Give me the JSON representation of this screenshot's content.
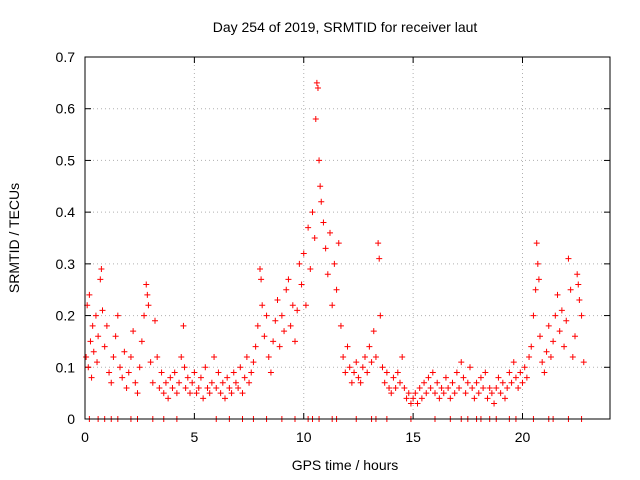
{
  "colors": {
    "series": "#ff0000",
    "axis": "#000000",
    "grid": "#b0b0b0",
    "background": "#ffffff"
  },
  "chart_data": {
    "type": "scatter",
    "title": "Day 254 of 2019, SRMTID for receiver laut",
    "xlabel": "GPS time / hours",
    "ylabel": "SRMTID / TECUs",
    "xlim": [
      0,
      24
    ],
    "ylim": [
      0,
      0.7
    ],
    "xticks": [
      0,
      5,
      10,
      15,
      20
    ],
    "yticks": [
      0,
      0.1,
      0.2,
      0.3,
      0.4,
      0.5,
      0.6,
      0.7
    ],
    "xtick_labels": [
      "0",
      "5",
      "10",
      "15",
      "20"
    ],
    "ytick_labels": [
      "0",
      "0.1",
      "0.2",
      "0.3",
      "0.4",
      "0.5",
      "0.6",
      "0.7"
    ],
    "grid": true,
    "marker": "plus",
    "series": [
      {
        "name": "SRMTID",
        "points": [
          [
            0.05,
            0.12
          ],
          [
            0.1,
            0.22
          ],
          [
            0.15,
            0.1
          ],
          [
            0.2,
            0.24
          ],
          [
            0.25,
            0.15
          ],
          [
            0.3,
            0.08
          ],
          [
            0.35,
            0.18
          ],
          [
            0.4,
            0.13
          ],
          [
            0.5,
            0.2
          ],
          [
            0.55,
            0.11
          ],
          [
            0.6,
            0.16
          ],
          [
            0.7,
            0.27
          ],
          [
            0.75,
            0.29
          ],
          [
            0.8,
            0.21
          ],
          [
            0.9,
            0.14
          ],
          [
            1.0,
            0.18
          ],
          [
            1.1,
            0.09
          ],
          [
            1.2,
            0.07
          ],
          [
            1.3,
            0.12
          ],
          [
            1.4,
            0.16
          ],
          [
            1.5,
            0.2
          ],
          [
            1.6,
            0.1
          ],
          [
            1.7,
            0.08
          ],
          [
            1.8,
            0.13
          ],
          [
            1.9,
            0.06
          ],
          [
            2.0,
            0.09
          ],
          [
            2.1,
            0.12
          ],
          [
            2.2,
            0.17
          ],
          [
            2.3,
            0.07
          ],
          [
            2.4,
            0.05
          ],
          [
            2.5,
            0.1
          ],
          [
            2.6,
            0.15
          ],
          [
            2.7,
            0.2
          ],
          [
            2.8,
            0.26
          ],
          [
            2.85,
            0.24
          ],
          [
            2.9,
            0.22
          ],
          [
            3.0,
            0.11
          ],
          [
            3.1,
            0.07
          ],
          [
            3.2,
            0.19
          ],
          [
            3.3,
            0.12
          ],
          [
            3.4,
            0.06
          ],
          [
            3.5,
            0.09
          ],
          [
            3.6,
            0.05
          ],
          [
            3.7,
            0.07
          ],
          [
            3.8,
            0.04
          ],
          [
            3.9,
            0.08
          ],
          [
            4.0,
            0.06
          ],
          [
            4.1,
            0.09
          ],
          [
            4.2,
            0.05
          ],
          [
            4.3,
            0.07
          ],
          [
            4.4,
            0.12
          ],
          [
            4.5,
            0.18
          ],
          [
            4.55,
            0.1
          ],
          [
            4.6,
            0.06
          ],
          [
            4.7,
            0.08
          ],
          [
            4.8,
            0.05
          ],
          [
            4.9,
            0.07
          ],
          [
            5.0,
            0.09
          ],
          [
            5.1,
            0.05
          ],
          [
            5.2,
            0.06
          ],
          [
            5.3,
            0.08
          ],
          [
            5.4,
            0.04
          ],
          [
            5.5,
            0.1
          ],
          [
            5.6,
            0.06
          ],
          [
            5.7,
            0.05
          ],
          [
            5.8,
            0.07
          ],
          [
            5.9,
            0.12
          ],
          [
            6.0,
            0.06
          ],
          [
            6.1,
            0.09
          ],
          [
            6.2,
            0.05
          ],
          [
            6.3,
            0.07
          ],
          [
            6.4,
            0.04
          ],
          [
            6.5,
            0.08
          ],
          [
            6.6,
            0.06
          ],
          [
            6.7,
            0.05
          ],
          [
            6.8,
            0.09
          ],
          [
            6.9,
            0.07
          ],
          [
            7.0,
            0.06
          ],
          [
            7.1,
            0.1
          ],
          [
            7.2,
            0.05
          ],
          [
            7.3,
            0.08
          ],
          [
            7.4,
            0.12
          ],
          [
            7.5,
            0.07
          ],
          [
            7.6,
            0.09
          ],
          [
            7.7,
            0.11
          ],
          [
            7.8,
            0.14
          ],
          [
            7.9,
            0.18
          ],
          [
            8.0,
            0.29
          ],
          [
            8.05,
            0.27
          ],
          [
            8.1,
            0.22
          ],
          [
            8.2,
            0.16
          ],
          [
            8.3,
            0.2
          ],
          [
            8.4,
            0.12
          ],
          [
            8.5,
            0.09
          ],
          [
            8.6,
            0.15
          ],
          [
            8.7,
            0.19
          ],
          [
            8.8,
            0.23
          ],
          [
            8.9,
            0.14
          ],
          [
            9.0,
            0.2
          ],
          [
            9.1,
            0.17
          ],
          [
            9.2,
            0.25
          ],
          [
            9.3,
            0.27
          ],
          [
            9.4,
            0.18
          ],
          [
            9.5,
            0.22
          ],
          [
            9.6,
            0.15
          ],
          [
            9.7,
            0.21
          ],
          [
            9.8,
            0.3
          ],
          [
            9.9,
            0.26
          ],
          [
            10.0,
            0.32
          ],
          [
            10.1,
            0.22
          ],
          [
            10.2,
            0.37
          ],
          [
            10.3,
            0.29
          ],
          [
            10.4,
            0.4
          ],
          [
            10.5,
            0.35
          ],
          [
            10.55,
            0.58
          ],
          [
            10.6,
            0.65
          ],
          [
            10.65,
            0.64
          ],
          [
            10.7,
            0.5
          ],
          [
            10.75,
            0.45
          ],
          [
            10.8,
            0.42
          ],
          [
            10.9,
            0.38
          ],
          [
            11.0,
            0.33
          ],
          [
            11.1,
            0.28
          ],
          [
            11.2,
            0.36
          ],
          [
            11.3,
            0.22
          ],
          [
            11.4,
            0.3
          ],
          [
            11.5,
            0.25
          ],
          [
            11.6,
            0.34
          ],
          [
            11.7,
            0.18
          ],
          [
            11.8,
            0.12
          ],
          [
            11.9,
            0.09
          ],
          [
            12.0,
            0.14
          ],
          [
            12.1,
            0.1
          ],
          [
            12.2,
            0.07
          ],
          [
            12.3,
            0.09
          ],
          [
            12.4,
            0.11
          ],
          [
            12.5,
            0.08
          ],
          [
            12.6,
            0.07
          ],
          [
            12.7,
            0.1
          ],
          [
            12.8,
            0.12
          ],
          [
            12.9,
            0.09
          ],
          [
            13.0,
            0.14
          ],
          [
            13.1,
            0.11
          ],
          [
            13.2,
            0.17
          ],
          [
            13.3,
            0.12
          ],
          [
            13.4,
            0.34
          ],
          [
            13.45,
            0.31
          ],
          [
            13.5,
            0.2
          ],
          [
            13.6,
            0.1
          ],
          [
            13.7,
            0.07
          ],
          [
            13.8,
            0.09
          ],
          [
            13.9,
            0.06
          ],
          [
            14.0,
            0.05
          ],
          [
            14.1,
            0.08
          ],
          [
            14.2,
            0.06
          ],
          [
            14.3,
            0.09
          ],
          [
            14.4,
            0.07
          ],
          [
            14.5,
            0.12
          ],
          [
            14.6,
            0.06
          ],
          [
            14.7,
            0.04
          ],
          [
            14.8,
            0.05
          ],
          [
            14.9,
            0.03
          ],
          [
            15.0,
            0.04
          ],
          [
            15.1,
            0.05
          ],
          [
            15.2,
            0.03
          ],
          [
            15.3,
            0.06
          ],
          [
            15.4,
            0.04
          ],
          [
            15.5,
            0.07
          ],
          [
            15.6,
            0.05
          ],
          [
            15.7,
            0.08
          ],
          [
            15.8,
            0.06
          ],
          [
            15.9,
            0.09
          ],
          [
            16.0,
            0.05
          ],
          [
            16.1,
            0.07
          ],
          [
            16.2,
            0.04
          ],
          [
            16.3,
            0.06
          ],
          [
            16.4,
            0.05
          ],
          [
            16.5,
            0.08
          ],
          [
            16.6,
            0.06
          ],
          [
            16.7,
            0.04
          ],
          [
            16.8,
            0.07
          ],
          [
            16.9,
            0.05
          ],
          [
            17.0,
            0.09
          ],
          [
            17.1,
            0.06
          ],
          [
            17.2,
            0.11
          ],
          [
            17.3,
            0.08
          ],
          [
            17.4,
            0.05
          ],
          [
            17.5,
            0.07
          ],
          [
            17.6,
            0.1
          ],
          [
            17.7,
            0.06
          ],
          [
            17.8,
            0.04
          ],
          [
            17.9,
            0.07
          ],
          [
            18.0,
            0.05
          ],
          [
            18.1,
            0.08
          ],
          [
            18.2,
            0.06
          ],
          [
            18.3,
            0.09
          ],
          [
            18.4,
            0.04
          ],
          [
            18.5,
            0.06
          ],
          [
            18.6,
            0.05
          ],
          [
            18.7,
            0.03
          ],
          [
            18.8,
            0.06
          ],
          [
            18.9,
            0.08
          ],
          [
            19.0,
            0.05
          ],
          [
            19.1,
            0.07
          ],
          [
            19.2,
            0.04
          ],
          [
            19.3,
            0.06
          ],
          [
            19.4,
            0.09
          ],
          [
            19.5,
            0.07
          ],
          [
            19.6,
            0.11
          ],
          [
            19.7,
            0.08
          ],
          [
            19.8,
            0.06
          ],
          [
            19.9,
            0.09
          ],
          [
            20.0,
            0.07
          ],
          [
            20.1,
            0.1
          ],
          [
            20.2,
            0.08
          ],
          [
            20.3,
            0.12
          ],
          [
            20.4,
            0.14
          ],
          [
            20.5,
            0.2
          ],
          [
            20.6,
            0.25
          ],
          [
            20.65,
            0.34
          ],
          [
            20.7,
            0.3
          ],
          [
            20.75,
            0.27
          ],
          [
            20.8,
            0.16
          ],
          [
            20.9,
            0.11
          ],
          [
            21.0,
            0.09
          ],
          [
            21.1,
            0.13
          ],
          [
            21.2,
            0.18
          ],
          [
            21.3,
            0.12
          ],
          [
            21.4,
            0.15
          ],
          [
            21.5,
            0.2
          ],
          [
            21.6,
            0.24
          ],
          [
            21.7,
            0.17
          ],
          [
            21.8,
            0.21
          ],
          [
            21.9,
            0.14
          ],
          [
            22.0,
            0.19
          ],
          [
            22.1,
            0.31
          ],
          [
            22.2,
            0.25
          ],
          [
            22.3,
            0.12
          ],
          [
            22.4,
            0.16
          ],
          [
            22.5,
            0.28
          ],
          [
            22.55,
            0.26
          ],
          [
            22.6,
            0.23
          ],
          [
            22.7,
            0.2
          ],
          [
            22.8,
            0.11
          ],
          [
            0.2,
            0.0
          ],
          [
            0.6,
            0.0
          ],
          [
            0.9,
            0.0
          ],
          [
            1.2,
            0.0
          ],
          [
            1.5,
            0.0
          ],
          [
            2.1,
            0.0
          ],
          [
            2.4,
            0.0
          ],
          [
            3.1,
            0.0
          ],
          [
            3.6,
            0.0
          ],
          [
            4.2,
            0.0
          ],
          [
            6.0,
            0.0
          ],
          [
            6.6,
            0.0
          ],
          [
            7.2,
            0.0
          ],
          [
            7.7,
            0.0
          ],
          [
            8.3,
            0.0
          ],
          [
            9.0,
            0.0
          ],
          [
            9.6,
            0.0
          ],
          [
            10.2,
            0.0
          ],
          [
            10.4,
            0.0
          ],
          [
            10.7,
            0.0
          ],
          [
            11.3,
            0.0
          ],
          [
            11.5,
            0.0
          ],
          [
            12.4,
            0.0
          ],
          [
            13.1,
            0.0
          ],
          [
            13.3,
            0.0
          ],
          [
            13.8,
            0.0
          ],
          [
            14.9,
            0.0
          ],
          [
            16.0,
            0.0
          ],
          [
            16.7,
            0.0
          ],
          [
            17.2,
            0.0
          ],
          [
            17.5,
            0.0
          ],
          [
            17.9,
            0.0
          ],
          [
            18.1,
            0.0
          ],
          [
            18.5,
            0.0
          ],
          [
            18.8,
            0.0
          ],
          [
            19.4,
            0.0
          ],
          [
            19.7,
            0.0
          ],
          [
            20.5,
            0.0
          ],
          [
            21.2,
            0.0
          ],
          [
            21.4,
            0.0
          ],
          [
            22.1,
            0.0
          ],
          [
            22.7,
            0.0
          ]
        ]
      }
    ]
  }
}
